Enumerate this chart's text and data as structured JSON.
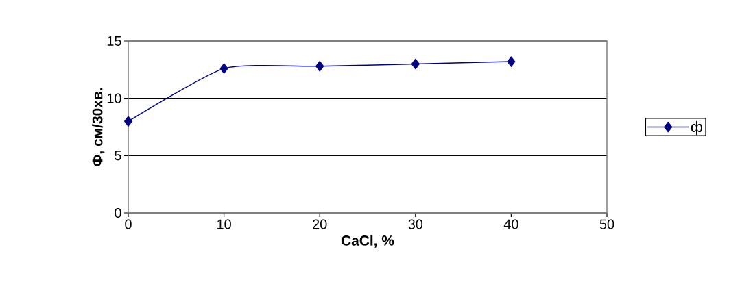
{
  "chart_data": {
    "type": "line",
    "xlabel": "CaCl, %",
    "ylabel": "Ф, см/30хв.",
    "x": [
      0,
      10,
      20,
      30,
      40
    ],
    "series": [
      {
        "name": "ф",
        "color": "#000080",
        "values": [
          8.0,
          12.6,
          12.8,
          13.0,
          13.2
        ]
      }
    ],
    "xlim": [
      0,
      50
    ],
    "xticks": [
      0,
      10,
      20,
      30,
      40,
      50
    ],
    "ylim": [
      0,
      15
    ],
    "yticks": [
      0,
      5,
      10,
      15
    ],
    "grid": "y",
    "legend": "right",
    "marker": "diamond",
    "line_style": "solid"
  }
}
